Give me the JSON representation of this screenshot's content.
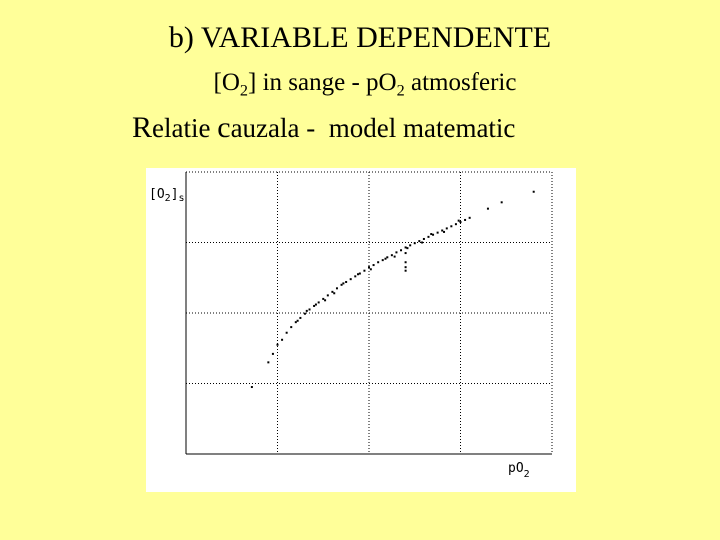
{
  "slide": {
    "title": "b) VARIABLE DEPENDENTE",
    "subtitle1": {
      "open": "[O",
      "sub1": "2",
      "mid": "] in sange - pO",
      "sub2": "2",
      "end": " atmosferic"
    },
    "subtitle2": {
      "r_cap": "R",
      "r_rest": "elatie ",
      "c_cap": "c",
      "c_rest": "auzala -  model matematic"
    }
  },
  "chart_data": {
    "type": "scatter",
    "title": "",
    "xlabel": {
      "main": "pO",
      "sub": "2"
    },
    "ylabel": {
      "main": "[O",
      "sub1": "2",
      "mid": "]",
      "sub2": "s"
    },
    "xlim": [
      0,
      4
    ],
    "ylim": [
      0,
      4
    ],
    "grid": true,
    "tick_labels": false,
    "point_color": "#000000",
    "series": [
      {
        "points": [
          [
            0.72,
            0.95
          ],
          [
            0.9,
            1.3
          ],
          [
            0.95,
            1.42
          ],
          [
            1.0,
            1.55
          ],
          [
            1.05,
            1.62
          ],
          [
            1.1,
            1.72
          ],
          [
            1.15,
            1.8
          ],
          [
            1.2,
            1.87
          ],
          [
            1.25,
            1.93
          ],
          [
            1.3,
            1.99
          ],
          [
            1.35,
            2.05
          ],
          [
            1.4,
            2.1
          ],
          [
            1.45,
            2.15
          ],
          [
            1.5,
            2.2
          ],
          [
            1.55,
            2.25
          ],
          [
            1.6,
            2.3
          ],
          [
            1.65,
            2.35
          ],
          [
            1.7,
            2.4
          ],
          [
            1.75,
            2.44
          ],
          [
            1.8,
            2.48
          ],
          [
            1.85,
            2.52
          ],
          [
            1.9,
            2.56
          ],
          [
            1.95,
            2.6
          ],
          [
            2.0,
            2.65
          ],
          [
            2.05,
            2.68
          ],
          [
            2.1,
            2.72
          ],
          [
            2.15,
            2.75
          ],
          [
            2.2,
            2.79
          ],
          [
            2.25,
            2.82
          ],
          [
            2.3,
            2.86
          ],
          [
            2.35,
            2.89
          ],
          [
            2.4,
            2.93
          ],
          [
            2.45,
            2.96
          ],
          [
            2.5,
            2.99
          ],
          [
            2.55,
            3.02
          ],
          [
            2.6,
            3.05
          ],
          [
            2.65,
            3.08
          ],
          [
            2.7,
            3.11
          ],
          [
            2.75,
            3.14
          ],
          [
            2.8,
            3.17
          ],
          [
            2.85,
            3.2
          ],
          [
            2.9,
            3.23
          ],
          [
            2.95,
            3.26
          ],
          [
            3.0,
            3.29
          ],
          [
            3.05,
            3.32
          ],
          [
            3.1,
            3.35
          ],
          [
            3.3,
            3.48
          ],
          [
            3.45,
            3.57
          ],
          [
            3.8,
            3.72
          ],
          [
            1.62,
            2.28
          ],
          [
            1.72,
            2.42
          ],
          [
            1.88,
            2.55
          ],
          [
            2.02,
            2.62
          ],
          [
            2.18,
            2.77
          ],
          [
            2.28,
            2.8
          ],
          [
            2.42,
            2.92
          ],
          [
            2.58,
            3.0
          ],
          [
            2.68,
            3.12
          ],
          [
            2.82,
            3.15
          ],
          [
            2.98,
            3.31
          ],
          [
            1.52,
            2.18
          ],
          [
            1.42,
            2.12
          ],
          [
            1.32,
            2.03
          ],
          [
            1.22,
            1.89
          ],
          [
            2.4,
            2.85
          ],
          [
            2.4,
            2.72
          ],
          [
            2.4,
            2.65
          ],
          [
            2.4,
            2.6
          ]
        ]
      }
    ]
  }
}
